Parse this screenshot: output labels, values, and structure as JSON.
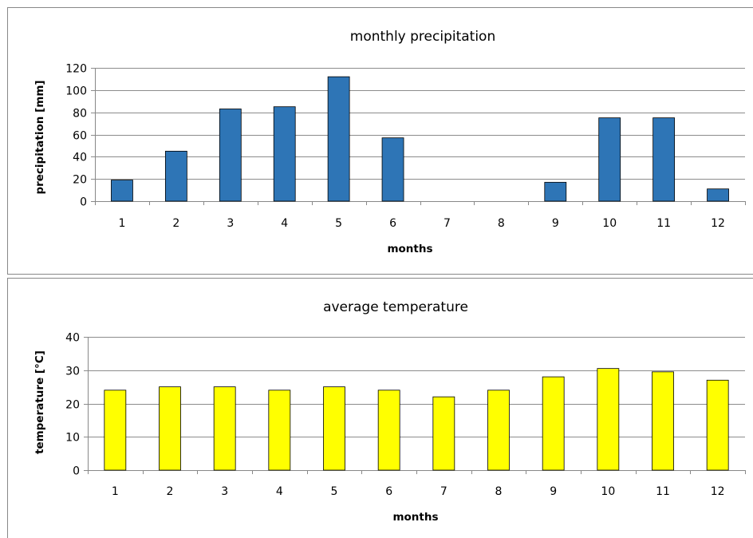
{
  "chart_data": [
    {
      "type": "bar",
      "title": "monthly precipitation",
      "xlabel": "months",
      "ylabel": "precipitation [mm]",
      "categories": [
        "1",
        "2",
        "3",
        "4",
        "5",
        "6",
        "7",
        "8",
        "9",
        "10",
        "11",
        "12"
      ],
      "values": [
        19,
        45,
        83,
        85,
        112,
        57,
        0,
        0,
        17,
        75,
        75,
        11
      ],
      "ylim": [
        0,
        120
      ],
      "yticks": [
        0,
        20,
        40,
        60,
        80,
        100,
        120
      ],
      "grid": true,
      "legend": "none",
      "bar_color": "#2e75b6"
    },
    {
      "type": "bar",
      "title": "average temperature",
      "xlabel": "months",
      "ylabel": "temperature [°C]",
      "categories": [
        "1",
        "2",
        "3",
        "4",
        "5",
        "6",
        "7",
        "8",
        "9",
        "10",
        "11",
        "12"
      ],
      "values": [
        24,
        25,
        25,
        24,
        25,
        24,
        22,
        24,
        28,
        30.5,
        29.5,
        27
      ],
      "ylim": [
        0,
        40
      ],
      "yticks": [
        0,
        10,
        20,
        30,
        40
      ],
      "grid": true,
      "legend": "none",
      "bar_color": "#ffff00"
    }
  ]
}
